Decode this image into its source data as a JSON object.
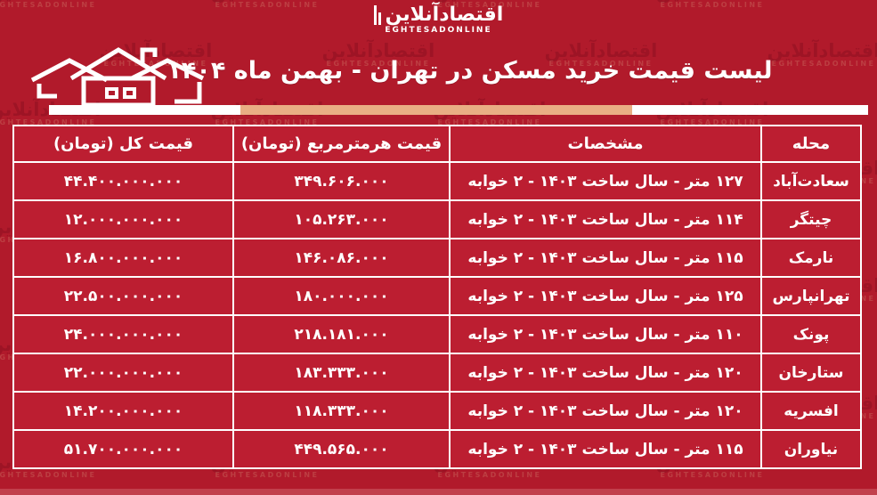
{
  "page": {
    "bg_color": "#b11a2b",
    "cell_color": "#bc1e31",
    "accent_orange": "#e9ae84",
    "accent_white": "#ffffff"
  },
  "logo": {
    "persian": "اقتصادآنلاین",
    "latin": "EGHTESADONLINE"
  },
  "watermark": {
    "persian": "اقتصادآنلاین",
    "latin": "EGHTESADONLINE"
  },
  "header": {
    "title": "لیست قیمت خرید مسکن در تهران - بهمن ماه ۱۴۰۴"
  },
  "table": {
    "columns": [
      {
        "key": "neighborhood",
        "label": "محله"
      },
      {
        "key": "specs",
        "label": "مشخصات"
      },
      {
        "key": "price_per_meter",
        "label": "قیمت هرمترمربع (تومان)"
      },
      {
        "key": "total_price",
        "label": "قیمت کل (تومان)"
      }
    ],
    "rows": [
      {
        "neighborhood": "سعادت‌آباد",
        "specs": "۱۲۷ متر - سال ساخت ۱۴۰۳ - ۲ خوابه",
        "price_per_meter": "۳۴۹.۶۰۶.۰۰۰",
        "total_price": "۴۴.۴۰۰.۰۰۰.۰۰۰"
      },
      {
        "neighborhood": "چیتگر",
        "specs": "۱۱۴ متر - سال ساخت ۱۴۰۳ - ۲ خوابه",
        "price_per_meter": "۱۰۵.۲۶۳.۰۰۰",
        "total_price": "۱۲.۰۰۰.۰۰۰.۰۰۰"
      },
      {
        "neighborhood": "نارمک",
        "specs": "۱۱۵ متر - سال ساخت ۱۴۰۳ - ۲ خوابه",
        "price_per_meter": "۱۴۶.۰۸۶.۰۰۰",
        "total_price": "۱۶.۸۰۰.۰۰۰.۰۰۰"
      },
      {
        "neighborhood": "تهرانپارس",
        "specs": "۱۲۵ متر - سال ساخت ۱۴۰۳ - ۲ خوابه",
        "price_per_meter": "۱۸۰.۰۰۰.۰۰۰",
        "total_price": "۲۲.۵۰۰.۰۰۰.۰۰۰"
      },
      {
        "neighborhood": "پونک",
        "specs": "۱۱۰ متر - سال ساخت ۱۴۰۳ - ۲ خوابه",
        "price_per_meter": "۲۱۸.۱۸۱.۰۰۰",
        "total_price": "۲۴.۰۰۰.۰۰۰.۰۰۰"
      },
      {
        "neighborhood": "ستارخان",
        "specs": "۱۲۰ متر - سال ساخت ۱۴۰۳ - ۲ خوابه",
        "price_per_meter": "۱۸۳.۳۳۳.۰۰۰",
        "total_price": "۲۲.۰۰۰.۰۰۰.۰۰۰"
      },
      {
        "neighborhood": "افسریه",
        "specs": "۱۲۰ متر - سال ساخت ۱۴۰۳ - ۲ خوابه",
        "price_per_meter": "۱۱۸.۳۳۳.۰۰۰",
        "total_price": "۱۴.۲۰۰.۰۰۰.۰۰۰"
      },
      {
        "neighborhood": "نیاوران",
        "specs": "۱۱۵ متر - سال ساخت ۱۴۰۳ - ۲ خوابه",
        "price_per_meter": "۴۴۹.۵۶۵.۰۰۰",
        "total_price": "۵۱.۷۰۰.۰۰۰.۰۰۰"
      }
    ]
  }
}
